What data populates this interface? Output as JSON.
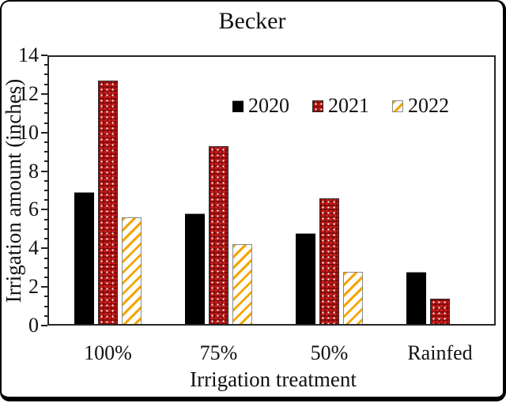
{
  "chart_data": {
    "type": "bar",
    "title": "Becker",
    "xlabel": "Irrigation treatment",
    "ylabel": "Irrigation amount (inches)",
    "categories": [
      "100%",
      "75%",
      "50%",
      "Rainfed"
    ],
    "series": [
      {
        "name": "2020",
        "color": "#000000",
        "pattern": "solid-black",
        "values": [
          6.9,
          5.8,
          4.8,
          2.8
        ]
      },
      {
        "name": "2021",
        "color": "#c81d1d",
        "pattern": "red-checker-weave",
        "values": [
          12.7,
          9.3,
          6.6,
          1.4
        ]
      },
      {
        "name": "2022",
        "color": "#f3a600",
        "pattern": "orange-diagonal-stripes-on-white",
        "values": [
          5.6,
          4.2,
          2.8,
          null
        ]
      }
    ],
    "ylim": [
      0,
      14
    ],
    "y_major_step": 2,
    "y_minor_step": 0.5,
    "y_tick_labels": [
      "0",
      "2",
      "4",
      "6",
      "8",
      "10",
      "12",
      "14"
    ],
    "grid": false,
    "legend_position": "inside-upper-center",
    "plot_border": true,
    "frame_border_color": "#000000"
  }
}
